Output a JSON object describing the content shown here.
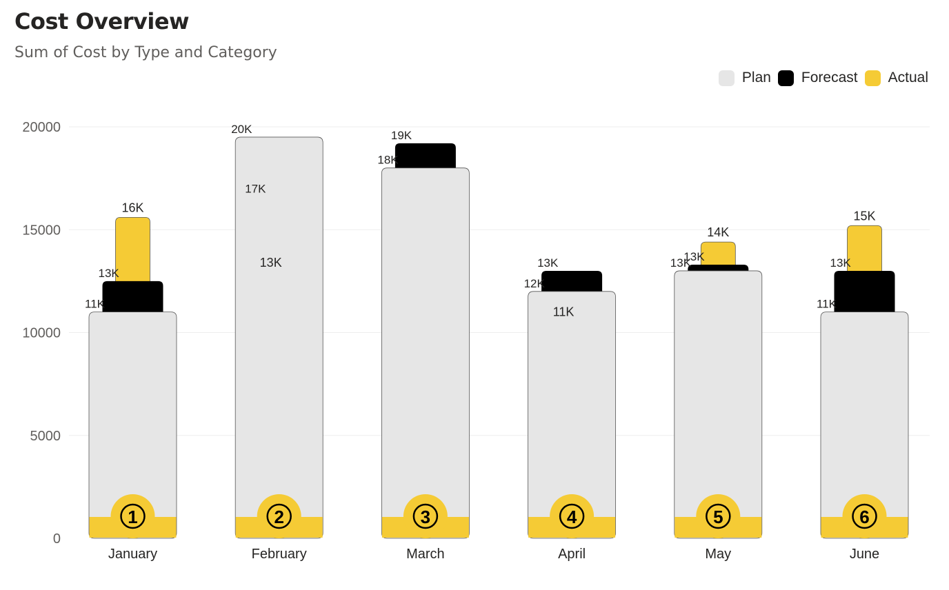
{
  "header": {
    "title": "Cost Overview",
    "subtitle": "Sum of Cost by Type and Category"
  },
  "legend": [
    {
      "name": "Plan",
      "color": "#e6e6e6"
    },
    {
      "name": "Forecast",
      "color": "#000000"
    },
    {
      "name": "Actual",
      "color": "#f5cb35"
    }
  ],
  "chart_data": {
    "type": "bar",
    "title": "Cost Overview",
    "subtitle": "Sum of Cost by Type and Category",
    "categories": [
      "January",
      "February",
      "March",
      "April",
      "May",
      "June"
    ],
    "series": [
      {
        "name": "Plan",
        "values": [
          11000,
          19500,
          18000,
          12000,
          13000,
          11000
        ],
        "labels": [
          "11K",
          "20K",
          "18K",
          "12K",
          "13K",
          "11K"
        ],
        "color": "#e6e6e6"
      },
      {
        "name": "Forecast",
        "values": [
          12500,
          17000,
          19200,
          13000,
          13300,
          13000
        ],
        "labels": [
          "13K",
          "17K",
          "19K",
          "13K",
          "13K",
          "13K"
        ],
        "color": "#000000"
      },
      {
        "name": "Actual",
        "values": [
          15600,
          13400,
          null,
          11000,
          14400,
          15200
        ],
        "labels": [
          "16K",
          "13K",
          "",
          "11K",
          "14K",
          "15K"
        ],
        "color": "#f5cb35"
      }
    ],
    "badges": [
      "①",
      "②",
      "③",
      "④",
      "⑤",
      "⑥"
    ],
    "yticks": [
      "0",
      "5000",
      "10000",
      "15000",
      "20000"
    ],
    "ylim": [
      0,
      20000
    ],
    "grid": true,
    "legend_position": "top-right"
  }
}
